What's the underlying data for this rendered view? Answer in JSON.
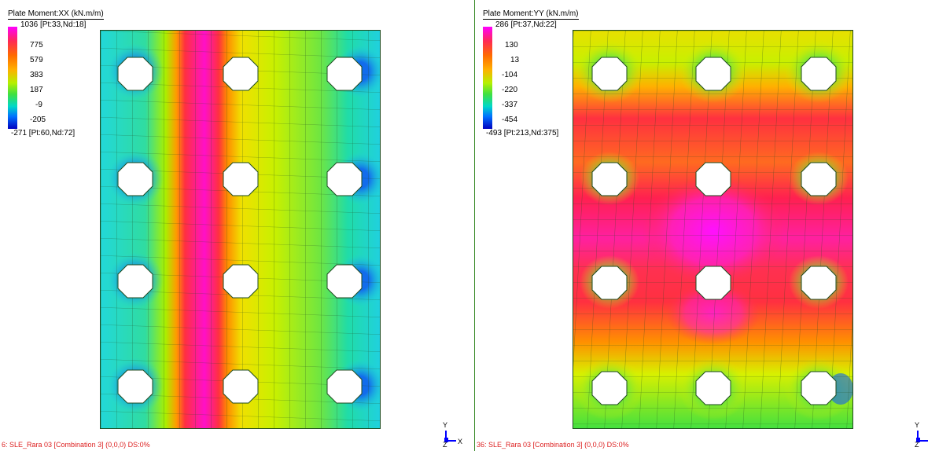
{
  "left_view": {
    "title": "Plate Moment:XX (kN.m/m)",
    "legend": {
      "max_label": "1036 [Pt:33,Nd:18]",
      "ticks": [
        "775",
        "579",
        "383",
        "187",
        "-9",
        "-205"
      ],
      "min_label": "-271 [Pt:60,Nd:72]"
    },
    "footer": "6: SLE_Rara 03 [Combination 3]  (0,0,0)  DS:0%"
  },
  "right_view": {
    "title": "Plate Moment:YY (kN.m/m)",
    "legend": {
      "max_label": "286 [Pt:37,Nd:22]",
      "ticks": [
        "130",
        "13",
        "-104",
        "-220",
        "-337",
        "-454"
      ],
      "min_label": "-493 [Pt:213,Nd:375]"
    },
    "footer": "36: SLE_Rara 03 [Combination 3]  (0,0,0)  DS:0%"
  },
  "axis": {
    "y_label": "Y",
    "z_label": "Z",
    "x_label": "X"
  },
  "colors": {
    "mesh_line": "#1e4a1e",
    "scale": [
      "#ff00ff",
      "#ff3366",
      "#ff6a00",
      "#ffa800",
      "#d8f000",
      "#40e040",
      "#00d8d8",
      "#0060ff",
      "#0000c0"
    ]
  }
}
